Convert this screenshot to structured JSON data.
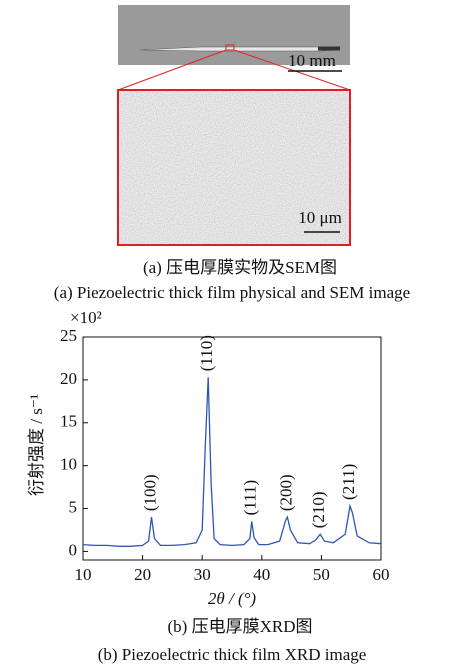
{
  "panel_a": {
    "scale_top": "10 mm",
    "scale_zoom": "10 μm",
    "caption_cn": "(a) 压电厚膜实物及SEM图",
    "caption_en": "(a) Piezoelectric thick film physical and SEM image"
  },
  "panel_b": {
    "caption_cn": "(b) 压电厚膜XRD图",
    "caption_en": "(b) Piezoelectric thick film XRD image"
  },
  "chart_data": {
    "type": "line",
    "y_multiplier": "×10²",
    "ylabel": "衍射强度 / s⁻¹",
    "xlabel": "2θ / (°)",
    "color": "#2f55b4",
    "x": [
      10,
      12,
      14,
      16,
      18,
      20,
      21,
      21.5,
      22,
      23,
      25,
      27,
      29,
      30,
      30.5,
      31,
      31.5,
      32,
      33,
      35,
      37,
      38,
      38.3,
      38.7,
      39.5,
      41,
      43,
      44,
      44.3,
      44.8,
      46,
      48,
      49,
      49.8,
      50.5,
      52,
      54,
      54.8,
      55.2,
      56,
      58,
      60
    ],
    "values": [
      0.8,
      0.7,
      0.7,
      0.6,
      0.6,
      0.7,
      1.2,
      4.0,
      1.5,
      0.7,
      0.7,
      0.8,
      1.0,
      2.5,
      12,
      20.3,
      8,
      1.5,
      0.8,
      0.7,
      0.8,
      1.5,
      3.5,
      1.6,
      0.8,
      0.8,
      1.2,
      3.6,
      4.0,
      2.5,
      1.0,
      0.9,
      1.3,
      2.0,
      1.2,
      1.0,
      2.0,
      5.3,
      4.5,
      1.8,
      1.0,
      0.9
    ],
    "xlim": [
      10,
      60
    ],
    "xticks": [
      10,
      20,
      30,
      40,
      50,
      60
    ],
    "ylim": [
      -1,
      25
    ],
    "yticks": [
      0,
      5,
      10,
      15,
      20,
      25
    ],
    "annotations": [
      {
        "text": "(100)",
        "x": 21.5
      },
      {
        "text": "(110)",
        "x": 31
      },
      {
        "text": "(111)",
        "x": 38.3
      },
      {
        "text": "(200)",
        "x": 44.3
      },
      {
        "text": "(210)",
        "x": 49.8
      },
      {
        "text": "(211)",
        "x": 54.8
      }
    ]
  }
}
